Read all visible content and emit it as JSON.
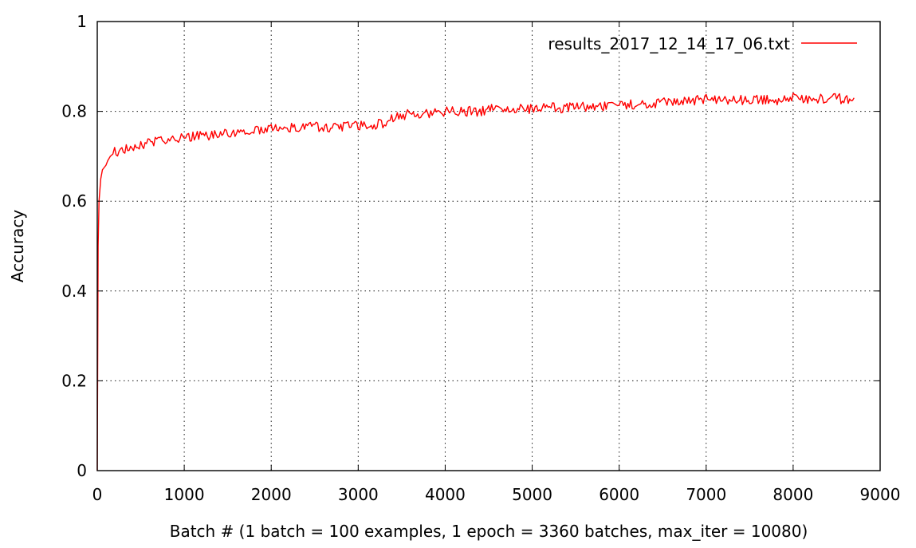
{
  "chart_data": {
    "type": "line",
    "title": "",
    "xlabel": "Batch # (1 batch = 100 examples, 1 epoch = 3360 batches, max_iter = 10080)",
    "ylabel": "Accuracy",
    "xlim": [
      0,
      9000
    ],
    "ylim": [
      0,
      1
    ],
    "x_ticks": [
      0,
      1000,
      2000,
      3000,
      4000,
      5000,
      6000,
      7000,
      8000,
      9000
    ],
    "x_tick_labels": [
      "0",
      "1000",
      "2000",
      "3000",
      "4000",
      "5000",
      "6000",
      "7000",
      "8000",
      "9000"
    ],
    "y_ticks": [
      0,
      0.2,
      0.4,
      0.6,
      0.8,
      1
    ],
    "y_tick_labels": [
      "0",
      "0.2",
      "0.4",
      "0.6",
      "0.8",
      "1"
    ],
    "grid": true,
    "legend": {
      "position": "top-right",
      "entries": [
        "results_2017_12_14_17_06.txt"
      ]
    },
    "series": [
      {
        "name": "results_2017_12_14_17_06.txt",
        "color": "#ff0000",
        "x": [
          0,
          10,
          20,
          40,
          60,
          80,
          100,
          120,
          150,
          180,
          200,
          250,
          300,
          350,
          400,
          450,
          500,
          550,
          600,
          650,
          700,
          750,
          800,
          850,
          900,
          950,
          1000,
          1100,
          1200,
          1300,
          1400,
          1500,
          1600,
          1700,
          1800,
          1900,
          2000,
          2100,
          2200,
          2300,
          2400,
          2500,
          2600,
          2700,
          2800,
          2900,
          3000,
          3100,
          3200,
          3300,
          3400,
          3500,
          3600,
          3700,
          3800,
          3900,
          4000,
          4100,
          4200,
          4300,
          4400,
          4500,
          4600,
          4700,
          4800,
          4900,
          5000,
          5100,
          5200,
          5300,
          5400,
          5500,
          5600,
          5700,
          5800,
          5900,
          6000,
          6100,
          6200,
          6300,
          6400,
          6500,
          6600,
          6700,
          6800,
          6900,
          7000,
          7100,
          7200,
          7300,
          7400,
          7500,
          7600,
          7700,
          7800,
          7900,
          8000,
          8100,
          8200,
          8300,
          8400,
          8500,
          8600,
          8700
        ],
        "y": [
          0.0,
          0.5,
          0.6,
          0.65,
          0.67,
          0.675,
          0.68,
          0.69,
          0.7,
          0.705,
          0.71,
          0.71,
          0.715,
          0.715,
          0.72,
          0.72,
          0.725,
          0.725,
          0.73,
          0.73,
          0.735,
          0.735,
          0.735,
          0.74,
          0.735,
          0.74,
          0.74,
          0.745,
          0.745,
          0.745,
          0.75,
          0.75,
          0.755,
          0.755,
          0.76,
          0.76,
          0.765,
          0.76,
          0.765,
          0.765,
          0.765,
          0.765,
          0.765,
          0.765,
          0.765,
          0.77,
          0.77,
          0.765,
          0.77,
          0.775,
          0.785,
          0.79,
          0.795,
          0.795,
          0.795,
          0.795,
          0.8,
          0.8,
          0.8,
          0.8,
          0.8,
          0.805,
          0.805,
          0.8,
          0.805,
          0.805,
          0.805,
          0.805,
          0.81,
          0.805,
          0.81,
          0.81,
          0.81,
          0.81,
          0.81,
          0.81,
          0.815,
          0.815,
          0.815,
          0.815,
          0.815,
          0.82,
          0.82,
          0.82,
          0.825,
          0.825,
          0.83,
          0.825,
          0.825,
          0.825,
          0.825,
          0.825,
          0.825,
          0.825,
          0.825,
          0.825,
          0.83,
          0.825,
          0.825,
          0.83,
          0.825,
          0.83,
          0.825,
          0.83
        ]
      }
    ]
  }
}
